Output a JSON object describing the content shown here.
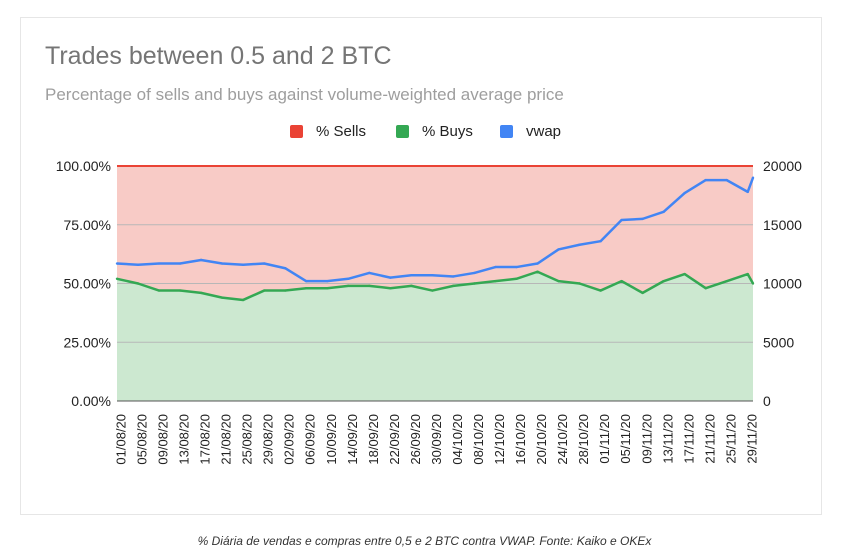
{
  "chart_data": {
    "type": "area",
    "title": "Trades between 0.5 and 2 BTC",
    "subtitle": "Percentage of sells and buys against volume-weighted average price",
    "legend_position": "top",
    "grid": true,
    "xlabel": "",
    "ylabel_left": "",
    "ylabel_right": "",
    "y_left": {
      "lim": [
        0,
        1
      ],
      "ticks": [
        "0.00%",
        "25.00%",
        "50.00%",
        "75.00%",
        "100.00%"
      ]
    },
    "y_right": {
      "lim": [
        0,
        20000
      ],
      "ticks": [
        "0",
        "5000",
        "10000",
        "15000",
        "20000"
      ]
    },
    "x_tick_labels": [
      "01/08/20",
      "05/08/20",
      "09/08/20",
      "13/08/20",
      "17/08/20",
      "21/08/20",
      "25/08/20",
      "29/08/20",
      "02/09/20",
      "06/09/20",
      "10/09/20",
      "14/09/20",
      "18/09/20",
      "22/09/20",
      "26/09/20",
      "30/09/20",
      "04/10/20",
      "08/10/20",
      "12/10/20",
      "16/10/20",
      "20/10/20",
      "24/10/20",
      "28/10/20",
      "01/11/20",
      "05/11/20",
      "09/11/20",
      "13/11/20",
      "17/11/20",
      "21/11/20",
      "25/11/20",
      "29/11/20"
    ],
    "x_start": "2020-08-01",
    "x_end": "2020-11-30",
    "series": [
      {
        "name": "% Sells",
        "color": "#ea4335",
        "axis": "left",
        "kind": "stacked-area-remainder",
        "values_note": "100% minus % Buys"
      },
      {
        "name": "% Buys",
        "color": "#34a853",
        "axis": "left",
        "kind": "area",
        "x": [
          "2020-08-01",
          "2020-08-05",
          "2020-08-09",
          "2020-08-13",
          "2020-08-17",
          "2020-08-21",
          "2020-08-25",
          "2020-08-29",
          "2020-09-02",
          "2020-09-06",
          "2020-09-10",
          "2020-09-14",
          "2020-09-18",
          "2020-09-22",
          "2020-09-26",
          "2020-09-30",
          "2020-10-04",
          "2020-10-08",
          "2020-10-12",
          "2020-10-16",
          "2020-10-20",
          "2020-10-24",
          "2020-10-28",
          "2020-11-01",
          "2020-11-05",
          "2020-11-09",
          "2020-11-13",
          "2020-11-17",
          "2020-11-21",
          "2020-11-25",
          "2020-11-29",
          "2020-11-30"
        ],
        "values": [
          0.52,
          0.5,
          0.47,
          0.47,
          0.46,
          0.44,
          0.43,
          0.47,
          0.47,
          0.48,
          0.48,
          0.49,
          0.49,
          0.48,
          0.49,
          0.47,
          0.49,
          0.5,
          0.51,
          0.52,
          0.55,
          0.51,
          0.5,
          0.47,
          0.51,
          0.46,
          0.51,
          0.54,
          0.48,
          0.51,
          0.54,
          0.5
        ]
      },
      {
        "name": "vwap",
        "color": "#4285f4",
        "axis": "right",
        "kind": "line",
        "x": [
          "2020-08-01",
          "2020-08-05",
          "2020-08-09",
          "2020-08-13",
          "2020-08-17",
          "2020-08-21",
          "2020-08-25",
          "2020-08-29",
          "2020-09-02",
          "2020-09-06",
          "2020-09-10",
          "2020-09-14",
          "2020-09-18",
          "2020-09-22",
          "2020-09-26",
          "2020-09-30",
          "2020-10-04",
          "2020-10-08",
          "2020-10-12",
          "2020-10-16",
          "2020-10-20",
          "2020-10-24",
          "2020-10-28",
          "2020-11-01",
          "2020-11-05",
          "2020-11-09",
          "2020-11-13",
          "2020-11-17",
          "2020-11-21",
          "2020-11-25",
          "2020-11-29",
          "2020-11-30"
        ],
        "values": [
          11700,
          11600,
          11700,
          11700,
          12000,
          11700,
          11600,
          11700,
          11300,
          10200,
          10200,
          10400,
          10900,
          10500,
          10700,
          10700,
          10600,
          10900,
          11400,
          11400,
          11700,
          12900,
          13300,
          13600,
          15400,
          15500,
          16100,
          17700,
          18800,
          18800,
          17800,
          19000
        ]
      }
    ]
  },
  "caption": "% Diária de vendas e compras entre 0,5 e 2 BTC contra VWAP. Fonte: Kaiko e OKEx"
}
